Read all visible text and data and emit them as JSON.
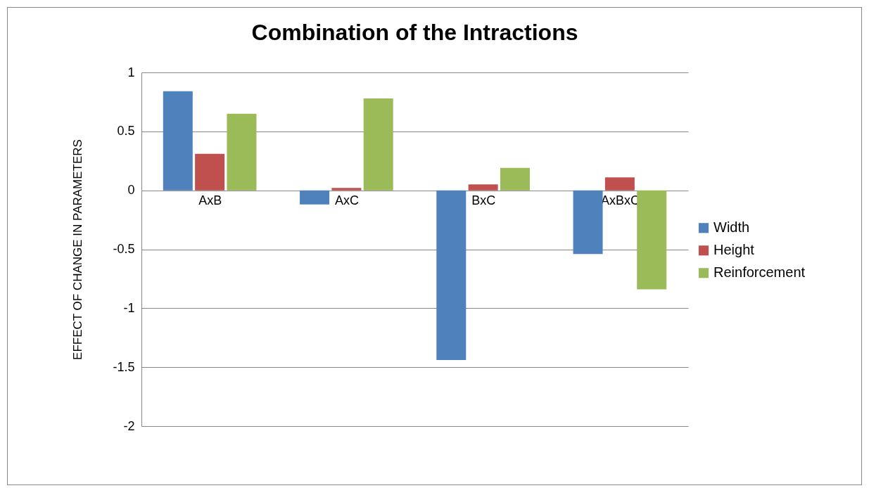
{
  "chart_data": {
    "type": "bar",
    "title": "Combination of the Intractions",
    "ylabel": "EFFECT OF CHANGE IN PARAMETERS",
    "categories": [
      "AxB",
      "AxC",
      "BxC",
      "AxBxC"
    ],
    "series": [
      {
        "name": "Width",
        "color": "#4f81bd",
        "values": [
          0.84,
          -0.12,
          -1.44,
          -0.54
        ]
      },
      {
        "name": "Height",
        "color": "#c0504d",
        "values": [
          0.31,
          0.02,
          0.05,
          0.11
        ]
      },
      {
        "name": "Reinforcement",
        "color": "#9bbb59",
        "values": [
          0.65,
          0.78,
          0.19,
          -0.84
        ]
      }
    ],
    "ylim": [
      -2,
      1
    ],
    "yticks": [
      -2,
      -1.5,
      -1,
      -0.5,
      0,
      0.5,
      1
    ],
    "grid": "y",
    "legend": "right"
  }
}
